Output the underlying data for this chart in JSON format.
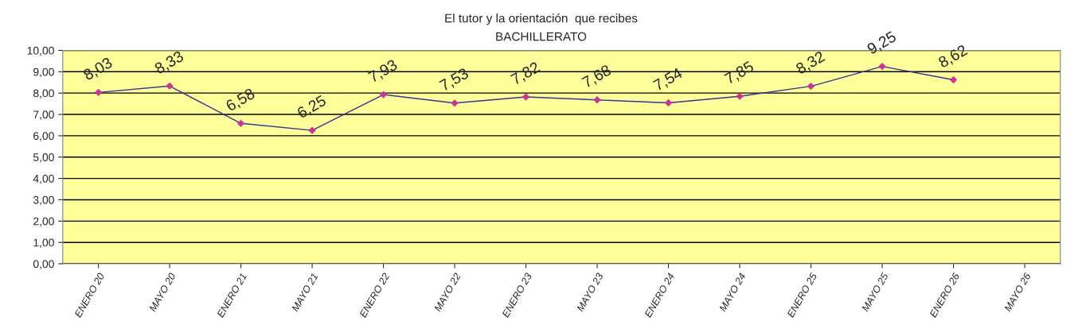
{
  "chart_data": {
    "type": "line",
    "title": "El tutor y la orientación  que recibes",
    "subtitle": "BACHILLERATO",
    "categories": [
      "ENERO 20",
      "MAYO 20",
      "ENERO 21",
      "MAYO 21",
      "ENERO 22",
      "MAYO 22",
      "ENERO 23",
      "MAYO 23",
      "ENERO 24",
      "MAYO 24",
      "ENERO 25",
      "MAYO 25",
      "ENERO 26",
      "MAYO 26"
    ],
    "series": [
      {
        "color": "#333399",
        "values": [
          8.03,
          8.33,
          6.58,
          6.25,
          7.93,
          7.53,
          7.82,
          7.68,
          7.54,
          7.85,
          8.32,
          9.25,
          8.62,
          null
        ],
        "value_labels": [
          "8,03",
          "8,33",
          "6,58",
          "6,25",
          "7,93",
          "7,53",
          "7,82",
          "7,68",
          "7,54",
          "7,85",
          "8,32",
          "9,25",
          "8,62",
          null
        ]
      }
    ],
    "ylim": [
      0,
      10
    ],
    "yticks": [
      {
        "value": 0,
        "label": "0,00"
      },
      {
        "value": 1,
        "label": "1,00"
      },
      {
        "value": 2,
        "label": "2,00"
      },
      {
        "value": 3,
        "label": "3,00"
      },
      {
        "value": 4,
        "label": "4,00"
      },
      {
        "value": 5,
        "label": "5,00"
      },
      {
        "value": 6,
        "label": "6,00"
      },
      {
        "value": 7,
        "label": "7,00"
      },
      {
        "value": 8,
        "label": "8,00"
      },
      {
        "value": 9,
        "label": "9,00"
      },
      {
        "value": 10,
        "label": "10,00"
      }
    ],
    "grid": "y",
    "marker": "diamond",
    "legend": false
  }
}
